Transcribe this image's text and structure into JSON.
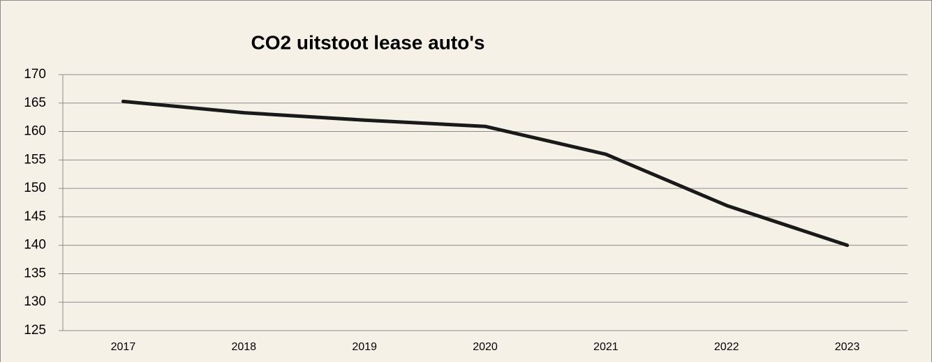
{
  "chart_data": {
    "type": "line",
    "title": "CO2 uitstoot lease auto's",
    "categories": [
      "2017",
      "2018",
      "2019",
      "2020",
      "2021",
      "2022",
      "2023"
    ],
    "series": [
      {
        "name": "CO2",
        "color": "#1a1a1a",
        "values": [
          165.3,
          163.3,
          162,
          160.9,
          156,
          147,
          140
        ]
      }
    ],
    "ylim": [
      125,
      170
    ],
    "yticks": [
      125,
      130,
      135,
      140,
      145,
      150,
      155,
      160,
      165,
      170
    ],
    "grid": true
  }
}
